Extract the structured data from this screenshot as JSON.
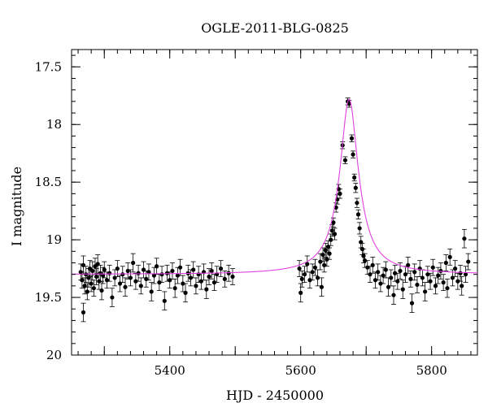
{
  "chart_data": {
    "type": "scatter",
    "title": "OGLE-2011-BLG-0825",
    "xlabel": "HJD - 2450000",
    "ylabel": "I magnitude",
    "xlim": [
      5250,
      5870
    ],
    "ylim": [
      20,
      17.35
    ],
    "y_inverted": true,
    "x_ticks": [
      5400,
      5600,
      5800
    ],
    "y_ticks": [
      17.5,
      18,
      18.5,
      19,
      19.5,
      20
    ],
    "x_tick_labels": [
      "5400",
      "5600",
      "5800"
    ],
    "y_tick_labels": [
      "17.5",
      "18",
      "18.5",
      "19",
      "19.5",
      "20"
    ],
    "colors": {
      "points": "#000000",
      "model": "#e040e0",
      "frame": "#000000"
    },
    "model": {
      "name": "",
      "baseline_mag": 19.3,
      "peak_time": 5674,
      "peak_mag": 17.78,
      "t_e": 16
    },
    "series": [
      {
        "name": "",
        "points": [
          [
            5264,
            19.28,
            0.07
          ],
          [
            5266,
            19.35,
            0.07
          ],
          [
            5268,
            19.22,
            0.08
          ],
          [
            5268,
            19.63,
            0.08
          ],
          [
            5270,
            19.4,
            0.07
          ],
          [
            5272,
            19.3,
            0.07
          ],
          [
            5274,
            19.45,
            0.07
          ],
          [
            5276,
            19.33,
            0.08
          ],
          [
            5278,
            19.25,
            0.07
          ],
          [
            5280,
            19.38,
            0.07
          ],
          [
            5282,
            19.27,
            0.08
          ],
          [
            5284,
            19.42,
            0.07
          ],
          [
            5286,
            19.23,
            0.07
          ],
          [
            5288,
            19.32,
            0.07
          ],
          [
            5290,
            19.21,
            0.08
          ],
          [
            5292,
            19.36,
            0.07
          ],
          [
            5294,
            19.29,
            0.07
          ],
          [
            5296,
            19.44,
            0.08
          ],
          [
            5298,
            19.31,
            0.07
          ],
          [
            5300,
            19.26,
            0.07
          ],
          [
            5304,
            19.35,
            0.07
          ],
          [
            5308,
            19.29,
            0.07
          ],
          [
            5312,
            19.5,
            0.08
          ],
          [
            5316,
            19.33,
            0.07
          ],
          [
            5320,
            19.25,
            0.07
          ],
          [
            5324,
            19.38,
            0.07
          ],
          [
            5328,
            19.3,
            0.07
          ],
          [
            5332,
            19.41,
            0.08
          ],
          [
            5336,
            19.27,
            0.07
          ],
          [
            5340,
            19.33,
            0.07
          ],
          [
            5344,
            19.2,
            0.08
          ],
          [
            5348,
            19.36,
            0.07
          ],
          [
            5352,
            19.29,
            0.07
          ],
          [
            5356,
            19.4,
            0.07
          ],
          [
            5360,
            19.26,
            0.07
          ],
          [
            5364,
            19.34,
            0.07
          ],
          [
            5368,
            19.28,
            0.07
          ],
          [
            5372,
            19.45,
            0.08
          ],
          [
            5376,
            19.31,
            0.07
          ],
          [
            5380,
            19.23,
            0.07
          ],
          [
            5384,
            19.37,
            0.07
          ],
          [
            5388,
            19.3,
            0.07
          ],
          [
            5392,
            19.53,
            0.08
          ],
          [
            5396,
            19.29,
            0.07
          ],
          [
            5400,
            19.35,
            0.07
          ],
          [
            5404,
            19.27,
            0.07
          ],
          [
            5408,
            19.42,
            0.08
          ],
          [
            5412,
            19.31,
            0.07
          ],
          [
            5416,
            19.24,
            0.07
          ],
          [
            5420,
            19.38,
            0.07
          ],
          [
            5424,
            19.46,
            0.08
          ],
          [
            5428,
            19.29,
            0.07
          ],
          [
            5432,
            19.33,
            0.07
          ],
          [
            5436,
            19.26,
            0.07
          ],
          [
            5440,
            19.4,
            0.07
          ],
          [
            5444,
            19.3,
            0.07
          ],
          [
            5448,
            19.36,
            0.07
          ],
          [
            5452,
            19.28,
            0.07
          ],
          [
            5456,
            19.43,
            0.08
          ],
          [
            5460,
            19.32,
            0.07
          ],
          [
            5464,
            19.27,
            0.07
          ],
          [
            5468,
            19.37,
            0.07
          ],
          [
            5472,
            19.3,
            0.07
          ],
          [
            5478,
            19.25,
            0.07
          ],
          [
            5484,
            19.34,
            0.07
          ],
          [
            5490,
            19.29,
            0.07
          ],
          [
            5496,
            19.32,
            0.07
          ],
          [
            5598,
            19.25,
            0.07
          ],
          [
            5600,
            19.46,
            0.08
          ],
          [
            5602,
            19.34,
            0.07
          ],
          [
            5606,
            19.3,
            0.07
          ],
          [
            5610,
            19.21,
            0.07
          ],
          [
            5614,
            19.35,
            0.07
          ],
          [
            5618,
            19.28,
            0.07
          ],
          [
            5622,
            19.24,
            0.07
          ],
          [
            5626,
            19.33,
            0.07
          ],
          [
            5630,
            19.19,
            0.07
          ],
          [
            5632,
            19.41,
            0.08
          ],
          [
            5634,
            19.13,
            0.06
          ],
          [
            5636,
            19.22,
            0.06
          ],
          [
            5638,
            19.09,
            0.06
          ],
          [
            5640,
            19.17,
            0.06
          ],
          [
            5642,
            19.06,
            0.05
          ],
          [
            5644,
            19.12,
            0.05
          ],
          [
            5646,
            19.0,
            0.05
          ],
          [
            5648,
            18.92,
            0.05
          ],
          [
            5650,
            18.85,
            0.04
          ],
          [
            5652,
            18.95,
            0.05
          ],
          [
            5654,
            18.72,
            0.04
          ],
          [
            5656,
            18.65,
            0.04
          ],
          [
            5658,
            18.56,
            0.04
          ],
          [
            5660,
            18.6,
            0.04
          ],
          [
            5664,
            18.18,
            0.03
          ],
          [
            5668,
            18.31,
            0.03
          ],
          [
            5672,
            17.8,
            0.03
          ],
          [
            5674,
            17.82,
            0.03
          ],
          [
            5678,
            18.12,
            0.03
          ],
          [
            5680,
            18.26,
            0.03
          ],
          [
            5682,
            18.46,
            0.03
          ],
          [
            5684,
            18.55,
            0.04
          ],
          [
            5686,
            18.68,
            0.04
          ],
          [
            5688,
            18.78,
            0.04
          ],
          [
            5690,
            18.9,
            0.05
          ],
          [
            5692,
            19.02,
            0.05
          ],
          [
            5694,
            19.08,
            0.05
          ],
          [
            5696,
            19.14,
            0.06
          ],
          [
            5698,
            19.18,
            0.06
          ],
          [
            5702,
            19.24,
            0.06
          ],
          [
            5706,
            19.3,
            0.07
          ],
          [
            5710,
            19.22,
            0.07
          ],
          [
            5714,
            19.35,
            0.07
          ],
          [
            5718,
            19.28,
            0.07
          ],
          [
            5722,
            19.38,
            0.07
          ],
          [
            5726,
            19.31,
            0.07
          ],
          [
            5730,
            19.26,
            0.07
          ],
          [
            5734,
            19.41,
            0.08
          ],
          [
            5738,
            19.33,
            0.07
          ],
          [
            5742,
            19.48,
            0.08
          ],
          [
            5744,
            19.29,
            0.07
          ],
          [
            5748,
            19.36,
            0.07
          ],
          [
            5752,
            19.27,
            0.07
          ],
          [
            5756,
            19.43,
            0.08
          ],
          [
            5760,
            19.3,
            0.07
          ],
          [
            5764,
            19.22,
            0.07
          ],
          [
            5768,
            19.34,
            0.07
          ],
          [
            5770,
            19.55,
            0.08
          ],
          [
            5774,
            19.28,
            0.07
          ],
          [
            5778,
            19.39,
            0.07
          ],
          [
            5782,
            19.25,
            0.07
          ],
          [
            5786,
            19.33,
            0.07
          ],
          [
            5790,
            19.45,
            0.08
          ],
          [
            5794,
            19.3,
            0.07
          ],
          [
            5798,
            19.36,
            0.07
          ],
          [
            5802,
            19.24,
            0.07
          ],
          [
            5806,
            19.4,
            0.07
          ],
          [
            5810,
            19.31,
            0.07
          ],
          [
            5814,
            19.27,
            0.07
          ],
          [
            5818,
            19.37,
            0.07
          ],
          [
            5822,
            19.2,
            0.07
          ],
          [
            5824,
            19.42,
            0.08
          ],
          [
            5828,
            19.15,
            0.07
          ],
          [
            5832,
            19.33,
            0.07
          ],
          [
            5836,
            19.25,
            0.07
          ],
          [
            5840,
            19.36,
            0.07
          ],
          [
            5844,
            19.29,
            0.07
          ],
          [
            5846,
            19.4,
            0.08
          ],
          [
            5850,
            18.99,
            0.08
          ],
          [
            5852,
            19.3,
            0.07
          ],
          [
            5856,
            19.19,
            0.07
          ]
        ]
      }
    ]
  }
}
